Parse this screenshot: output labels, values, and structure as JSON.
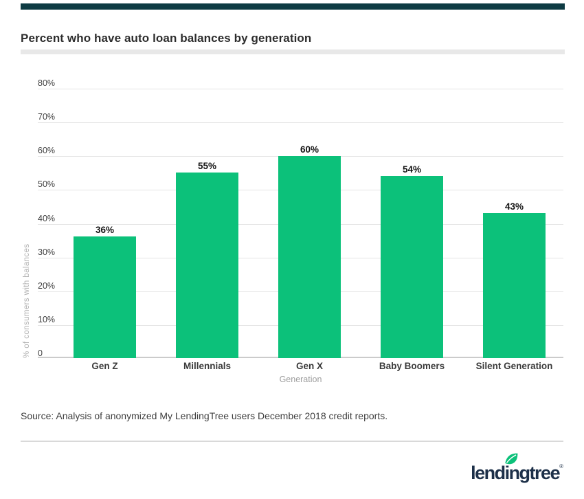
{
  "header": {
    "title": "Percent who have auto loan balances by generation"
  },
  "chart_data": {
    "type": "bar",
    "title": "Percent who have auto loan balances by generation",
    "categories": [
      "Gen Z",
      "Millennials",
      "Gen X",
      "Baby Boomers",
      "Silent Generation"
    ],
    "values": [
      36,
      55,
      60,
      54,
      43
    ],
    "value_labels": [
      "36%",
      "55%",
      "60%",
      "54%",
      "43%"
    ],
    "xlabel": "Generation",
    "ylabel": "% of consumers with balances",
    "ylim": [
      0,
      80
    ],
    "ytick_step": 10,
    "ytick_labels": [
      "0",
      "10%",
      "20%",
      "30%",
      "40%",
      "50%",
      "60%",
      "70%",
      "80%"
    ],
    "grid": true,
    "legend": "none",
    "bar_color": "#0cc17a"
  },
  "footer": {
    "source": "Source: Analysis of anonymized My LendingTree users December 2018 credit reports.",
    "logo_wordmark": "lendingtree",
    "logo_registered": "®"
  },
  "colors": {
    "accent_bar": "#0e3b43",
    "bar_green": "#0cc17a",
    "logo_navy": "#1d3049",
    "leaf_green": "#0cc17a",
    "gridline": "#e4e4e4",
    "baseline": "#cbcbcb",
    "title_text": "#2d2d2d",
    "axis_text": "#3f3f3f",
    "muted_text": "#9e9e9e"
  }
}
